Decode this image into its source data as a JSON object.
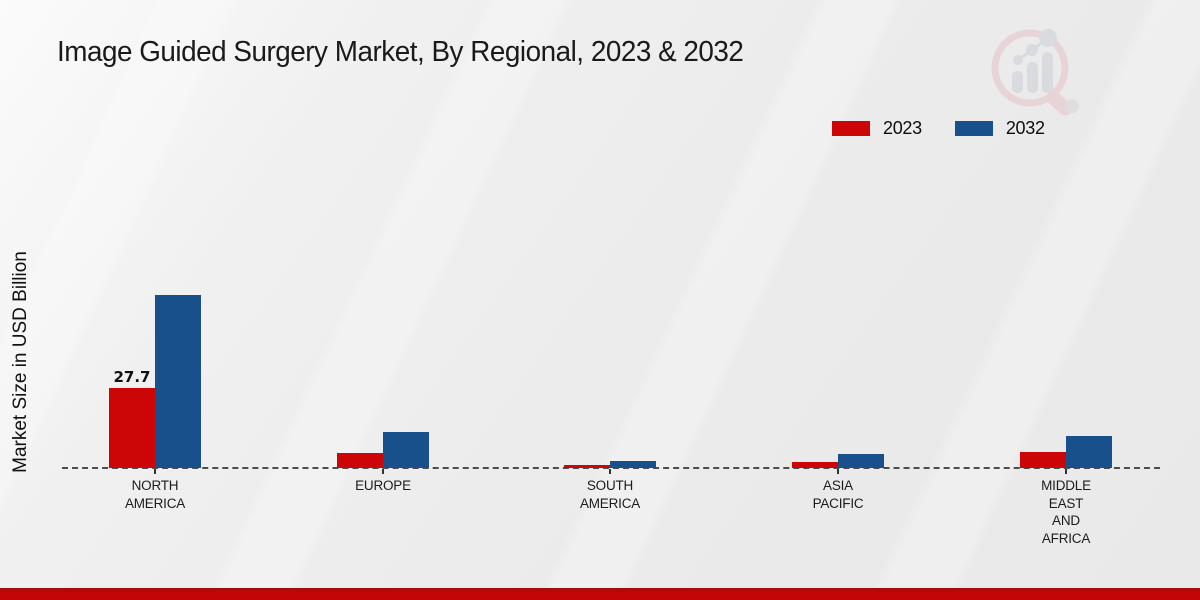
{
  "title": "Image Guided Surgery Market, By Regional, 2023 & 2032",
  "y_axis_label": "Market Size in USD Billion",
  "legend": {
    "items": [
      {
        "label": "2023",
        "color": "#cc0606"
      },
      {
        "label": "2032",
        "color": "#17508a"
      }
    ]
  },
  "colors": {
    "bar_2023": "#cc0606",
    "bar_2032": "#17508a",
    "bottom_strip": "#c30505",
    "dashed_baseline": "#4d4d4d",
    "background": "#ececeb"
  },
  "watermark": {
    "name": "market-research-logo",
    "ring_color": "#e6c3c8",
    "bars_color": "#c9ced6"
  },
  "chart_data": {
    "type": "bar",
    "title": "Image Guided Surgery Market, By Regional, 2023 & 2032",
    "xlabel": "",
    "ylabel": "Market Size in USD Billion",
    "categories": [
      "NORTH AMERICA",
      "EUROPE",
      "SOUTH AMERICA",
      "ASIA PACIFIC",
      "MIDDLE EAST AND AFRICA"
    ],
    "category_label_lines": [
      [
        "NORTH",
        "AMERICA"
      ],
      [
        "EUROPE"
      ],
      [
        "SOUTH",
        "AMERICA"
      ],
      [
        "ASIA",
        "PACIFIC"
      ],
      [
        "MIDDLE",
        "EAST",
        "AND",
        "AFRICA"
      ]
    ],
    "series": [
      {
        "name": "2023",
        "color": "#cc0606",
        "values": [
          27.7,
          5.2,
          1.0,
          2.1,
          5.5
        ]
      },
      {
        "name": "2032",
        "color": "#17508a",
        "values": [
          59.9,
          12.5,
          2.4,
          4.8,
          11.1
        ]
      }
    ],
    "value_labels": [
      {
        "series_index": 0,
        "category_index": 0,
        "text": "27.7"
      }
    ],
    "ylim": [
      0,
      65
    ],
    "grid": false,
    "baseline_style": "dashed",
    "legend_position": "top-right"
  }
}
